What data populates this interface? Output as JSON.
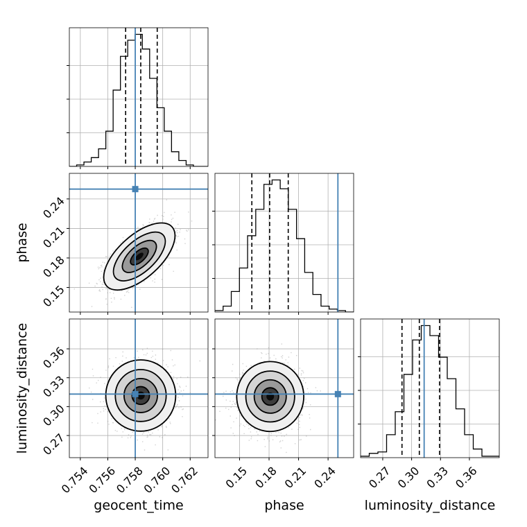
{
  "chart_data": {
    "type": "corner",
    "parameters": [
      "geocent_time",
      "phase",
      "luminosity_distance"
    ],
    "truth_color": "#4682b4",
    "truths": {
      "geocent_time": 0.758,
      "phase": 0.25,
      "luminosity_distance": 0.313
    },
    "axes": {
      "geocent_time": {
        "xlim": [
          0.7532,
          0.7633
        ],
        "ticks": [
          0.754,
          0.756,
          0.758,
          0.76,
          0.762
        ],
        "tick_labels": [
          "0.754",
          "0.756",
          "0.758",
          "0.760",
          "0.762"
        ],
        "label": "geocent_time"
      },
      "phase": {
        "xlim": [
          0.125,
          0.266
        ],
        "ticks": [
          0.15,
          0.18,
          0.21,
          0.24
        ],
        "tick_labels": [
          "0.15",
          "0.18",
          "0.21",
          "0.24"
        ],
        "label": "phase"
      },
      "luminosity_distance": {
        "xlim": [
          0.247,
          0.391
        ],
        "ticks": [
          0.27,
          0.3,
          0.33,
          0.36
        ],
        "tick_labels": [
          "0.27",
          "0.30",
          "0.33",
          "0.36"
        ],
        "label": "luminosity_distance"
      }
    },
    "histograms": [
      {
        "parameter": "geocent_time",
        "quantiles": [
          0.7573,
          0.7584,
          0.7596
        ],
        "counts": [
          0,
          1,
          3,
          6,
          12,
          24,
          52,
          75,
          86,
          90,
          80,
          60,
          40,
          24,
          10,
          4,
          1,
          0,
          0
        ]
      },
      {
        "parameter": "phase",
        "quantiles": [
          0.1625,
          0.1806,
          0.1995
        ],
        "counts": [
          1,
          4,
          14,
          30,
          52,
          70,
          87,
          90,
          84,
          70,
          50,
          27,
          12,
          4,
          2,
          1,
          0
        ]
      },
      {
        "parameter": "luminosity_distance",
        "quantiles": [
          0.29,
          0.308,
          0.329
        ],
        "counts": [
          1,
          3,
          4,
          16,
          32,
          58,
          82,
          92,
          85,
          70,
          55,
          34,
          16,
          6,
          1,
          1
        ]
      }
    ],
    "joint": [
      {
        "x": "geocent_time",
        "y": "phase",
        "mean": [
          0.7583,
          0.1815
        ],
        "std": [
          0.00118,
          0.0155
        ],
        "corr": 0.62
      },
      {
        "x": "geocent_time",
        "y": "luminosity_distance",
        "mean": [
          0.7584,
          0.3115
        ],
        "std": [
          0.00118,
          0.0165
        ],
        "corr": 0.0
      },
      {
        "x": "phase",
        "y": "luminosity_distance",
        "mean": [
          0.1812,
          0.3105
        ],
        "std": [
          0.0155,
          0.0165
        ],
        "corr": 0.0
      }
    ],
    "grid": true
  }
}
